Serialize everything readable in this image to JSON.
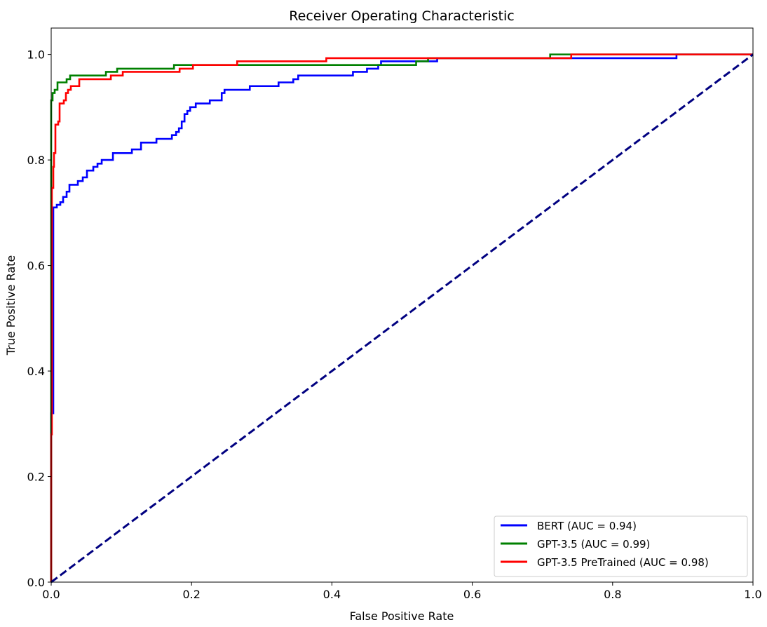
{
  "chart_data": {
    "type": "line",
    "title": "Receiver Operating Characteristic",
    "xlabel": "False Positive Rate",
    "ylabel": "True Positive Rate",
    "xlim": [
      0.0,
      1.0
    ],
    "ylim": [
      0.0,
      1.05
    ],
    "x_ticks": [
      "0.0",
      "0.2",
      "0.4",
      "0.6",
      "0.8",
      "1.0"
    ],
    "y_ticks": [
      "0.0",
      "0.2",
      "0.4",
      "0.6",
      "0.8",
      "1.0"
    ],
    "x_tick_values": [
      0.0,
      0.2,
      0.4,
      0.6,
      0.8,
      1.0
    ],
    "y_tick_values": [
      0.0,
      0.2,
      0.4,
      0.6,
      0.8,
      1.0
    ],
    "grid": false,
    "legend_position": "lower-right",
    "series": [
      {
        "name": "BERT (AUC = 0.94)",
        "color": "#0000ff",
        "points": [
          [
            0.0,
            0.0
          ],
          [
            0.0,
            0.32
          ],
          [
            0.003,
            0.32
          ],
          [
            0.003,
            0.71
          ],
          [
            0.008,
            0.71
          ],
          [
            0.008,
            0.715
          ],
          [
            0.013,
            0.715
          ],
          [
            0.013,
            0.72
          ],
          [
            0.017,
            0.72
          ],
          [
            0.017,
            0.73
          ],
          [
            0.022,
            0.73
          ],
          [
            0.022,
            0.74
          ],
          [
            0.026,
            0.74
          ],
          [
            0.026,
            0.753
          ],
          [
            0.038,
            0.753
          ],
          [
            0.038,
            0.76
          ],
          [
            0.045,
            0.76
          ],
          [
            0.045,
            0.767
          ],
          [
            0.051,
            0.767
          ],
          [
            0.051,
            0.78
          ],
          [
            0.06,
            0.78
          ],
          [
            0.06,
            0.787
          ],
          [
            0.066,
            0.787
          ],
          [
            0.066,
            0.793
          ],
          [
            0.072,
            0.793
          ],
          [
            0.072,
            0.8
          ],
          [
            0.088,
            0.8
          ],
          [
            0.088,
            0.813
          ],
          [
            0.115,
            0.813
          ],
          [
            0.115,
            0.82
          ],
          [
            0.128,
            0.82
          ],
          [
            0.128,
            0.833
          ],
          [
            0.15,
            0.833
          ],
          [
            0.15,
            0.84
          ],
          [
            0.172,
            0.84
          ],
          [
            0.172,
            0.847
          ],
          [
            0.178,
            0.847
          ],
          [
            0.178,
            0.853
          ],
          [
            0.182,
            0.853
          ],
          [
            0.182,
            0.86
          ],
          [
            0.186,
            0.86
          ],
          [
            0.186,
            0.873
          ],
          [
            0.19,
            0.873
          ],
          [
            0.19,
            0.887
          ],
          [
            0.194,
            0.887
          ],
          [
            0.194,
            0.893
          ],
          [
            0.198,
            0.893
          ],
          [
            0.198,
            0.9
          ],
          [
            0.206,
            0.9
          ],
          [
            0.206,
            0.907
          ],
          [
            0.226,
            0.907
          ],
          [
            0.226,
            0.913
          ],
          [
            0.243,
            0.913
          ],
          [
            0.243,
            0.927
          ],
          [
            0.247,
            0.927
          ],
          [
            0.247,
            0.933
          ],
          [
            0.283,
            0.933
          ],
          [
            0.283,
            0.94
          ],
          [
            0.324,
            0.94
          ],
          [
            0.324,
            0.947
          ],
          [
            0.345,
            0.947
          ],
          [
            0.345,
            0.953
          ],
          [
            0.352,
            0.953
          ],
          [
            0.352,
            0.96
          ],
          [
            0.43,
            0.96
          ],
          [
            0.43,
            0.967
          ],
          [
            0.45,
            0.967
          ],
          [
            0.45,
            0.973
          ],
          [
            0.466,
            0.973
          ],
          [
            0.466,
            0.98
          ],
          [
            0.47,
            0.98
          ],
          [
            0.47,
            0.987
          ],
          [
            0.55,
            0.987
          ],
          [
            0.55,
            0.993
          ],
          [
            0.891,
            0.993
          ],
          [
            0.891,
            1.0
          ],
          [
            1.0,
            1.0
          ]
        ]
      },
      {
        "name": "GPT-3.5 (AUC = 0.99)",
        "color": "#008000",
        "points": [
          [
            0.0,
            0.0
          ],
          [
            0.0,
            0.913
          ],
          [
            0.002,
            0.913
          ],
          [
            0.002,
            0.927
          ],
          [
            0.005,
            0.927
          ],
          [
            0.005,
            0.933
          ],
          [
            0.009,
            0.933
          ],
          [
            0.009,
            0.947
          ],
          [
            0.022,
            0.947
          ],
          [
            0.022,
            0.953
          ],
          [
            0.027,
            0.953
          ],
          [
            0.027,
            0.96
          ],
          [
            0.078,
            0.96
          ],
          [
            0.078,
            0.967
          ],
          [
            0.094,
            0.967
          ],
          [
            0.094,
            0.973
          ],
          [
            0.175,
            0.973
          ],
          [
            0.175,
            0.98
          ],
          [
            0.52,
            0.98
          ],
          [
            0.52,
            0.987
          ],
          [
            0.537,
            0.987
          ],
          [
            0.537,
            0.993
          ],
          [
            0.711,
            0.993
          ],
          [
            0.711,
            1.0
          ],
          [
            1.0,
            1.0
          ]
        ]
      },
      {
        "name": "GPT-3.5 PreTrained (AUC = 0.98)",
        "color": "#ff0000",
        "points": [
          [
            0.0,
            0.0
          ],
          [
            0.0,
            0.28
          ],
          [
            0.001,
            0.28
          ],
          [
            0.001,
            0.747
          ],
          [
            0.003,
            0.747
          ],
          [
            0.003,
            0.787
          ],
          [
            0.004,
            0.787
          ],
          [
            0.004,
            0.813
          ],
          [
            0.006,
            0.813
          ],
          [
            0.006,
            0.867
          ],
          [
            0.01,
            0.867
          ],
          [
            0.01,
            0.873
          ],
          [
            0.012,
            0.873
          ],
          [
            0.012,
            0.907
          ],
          [
            0.018,
            0.907
          ],
          [
            0.018,
            0.913
          ],
          [
            0.021,
            0.913
          ],
          [
            0.021,
            0.927
          ],
          [
            0.024,
            0.927
          ],
          [
            0.024,
            0.933
          ],
          [
            0.028,
            0.933
          ],
          [
            0.028,
            0.94
          ],
          [
            0.04,
            0.94
          ],
          [
            0.04,
            0.953
          ],
          [
            0.085,
            0.953
          ],
          [
            0.085,
            0.96
          ],
          [
            0.102,
            0.96
          ],
          [
            0.102,
            0.967
          ],
          [
            0.183,
            0.967
          ],
          [
            0.183,
            0.973
          ],
          [
            0.202,
            0.973
          ],
          [
            0.202,
            0.98
          ],
          [
            0.265,
            0.98
          ],
          [
            0.265,
            0.987
          ],
          [
            0.392,
            0.987
          ],
          [
            0.392,
            0.993
          ],
          [
            0.741,
            0.993
          ],
          [
            0.741,
            1.0
          ],
          [
            1.0,
            1.0
          ]
        ]
      },
      {
        "name": "",
        "color": "#000080",
        "dashed": true,
        "points": [
          [
            0.0,
            0.0
          ],
          [
            1.0,
            1.0
          ]
        ]
      }
    ],
    "legend_entries": [
      "BERT (AUC = 0.94)",
      "GPT-3.5 (AUC = 0.99)",
      "GPT-3.5 PreTrained (AUC = 0.98)"
    ]
  }
}
